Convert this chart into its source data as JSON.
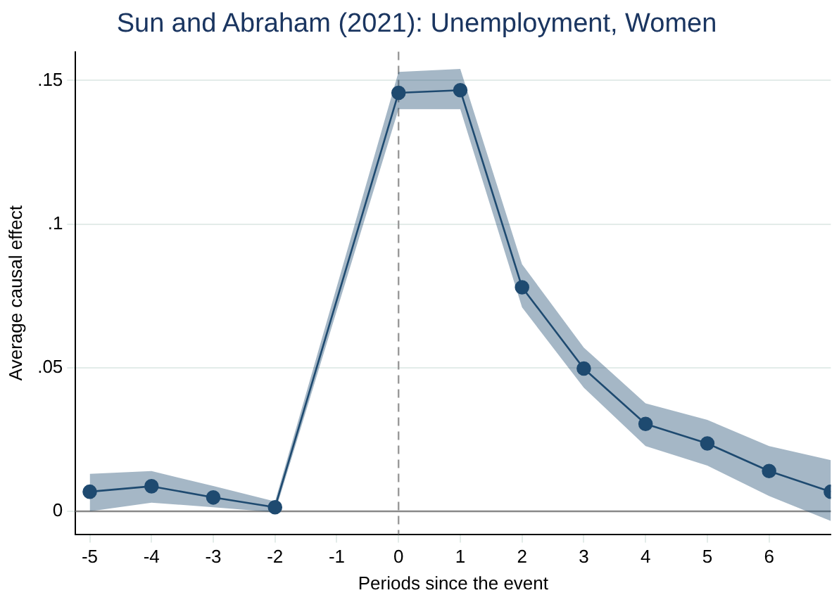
{
  "chart_data": {
    "type": "line",
    "title": "Sun and Abraham (2021): Unemployment, Women",
    "xlabel": "Periods since the event",
    "ylabel": "Average causal effect",
    "x": [
      -5,
      -4,
      -3,
      -2,
      0,
      1,
      2,
      3,
      4,
      5,
      6,
      7
    ],
    "series": [
      {
        "color": "#1f4a70",
        "values": [
          0.0068,
          0.0087,
          0.0048,
          0.0014,
          0.1457,
          0.1466,
          0.078,
          0.0497,
          0.0304,
          0.0236,
          0.014,
          0.0068
        ],
        "lower": [
          0,
          0.003,
          0.0014,
          -0.0003,
          0.14,
          0.14,
          0.071,
          0.043,
          0.0227,
          0.0159,
          0.0053,
          -0.0034
        ],
        "upper": [
          0.013,
          0.014,
          0.0088,
          0.0034,
          0.153,
          0.154,
          0.086,
          0.057,
          0.0376,
          0.0318,
          0.0227,
          0.0178
        ]
      }
    ],
    "xlim": [
      -5.23,
      7
    ],
    "xticks": [
      -5,
      -4,
      -3,
      -2,
      -1,
      0,
      1,
      2,
      3,
      4,
      5,
      6
    ],
    "ylim": [
      -0.008,
      0.16
    ],
    "yticks": [
      {
        "value": 0,
        "label": "0"
      },
      {
        "value": 0.05,
        "label": ".05"
      },
      {
        "value": 0.1,
        "label": ".1"
      },
      {
        "value": 0.15,
        "label": ".15"
      }
    ],
    "grid": "y",
    "legend": false,
    "marker": "circle",
    "line_style": "solid",
    "ref_lines": [
      {
        "axis": "y",
        "value": 0,
        "color": "#888888",
        "line_style": "solid"
      },
      {
        "axis": "x",
        "value": 0,
        "color": "#999999",
        "line_style": "dashed"
      }
    ]
  }
}
